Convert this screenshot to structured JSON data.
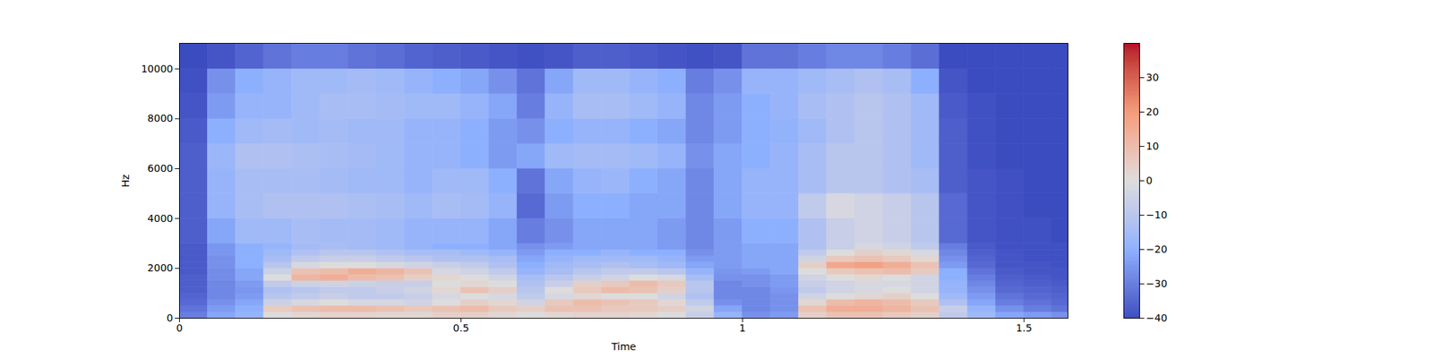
{
  "chart_data": {
    "type": "heatmap",
    "x_label": "Time",
    "y_label": "Hz",
    "xlim": [
      0,
      1.578
    ],
    "ylim": [
      0,
      11025
    ],
    "xticks": [
      0,
      0.5,
      1,
      1.5
    ],
    "yticks": [
      0,
      2000,
      4000,
      6000,
      8000,
      10000
    ],
    "x_edges": [
      0,
      0.05,
      0.1,
      0.15,
      0.2,
      0.25,
      0.3,
      0.35,
      0.4,
      0.45,
      0.5,
      0.55,
      0.6,
      0.65,
      0.7,
      0.75,
      0.8,
      0.85,
      0.9,
      0.95,
      1.0,
      1.05,
      1.1,
      1.15,
      1.2,
      1.25,
      1.3,
      1.35,
      1.4,
      1.45,
      1.5,
      1.55,
      1.578
    ],
    "y_edges": [
      0,
      250,
      500,
      750,
      1000,
      1250,
      1500,
      1750,
      2000,
      2250,
      2500,
      2750,
      3000,
      4000,
      5000,
      6000,
      7000,
      8000,
      9000,
      10000,
      11025
    ],
    "cells": [
      [
        -30,
        -32,
        -34,
        -35,
        -36,
        -36,
        -36,
        -37,
        -37,
        -37,
        -37,
        -37,
        -36,
        -36,
        -36,
        -36,
        -37,
        -38,
        -39,
        -40
      ],
      [
        -22,
        -24,
        -26,
        -28,
        -28,
        -28,
        -27,
        -27,
        -26,
        -26,
        -25,
        -25,
        -22,
        -18,
        -18,
        -17,
        -20,
        -24,
        -26,
        -38
      ],
      [
        -18,
        -20,
        -22,
        -24,
        -25,
        -24,
        -22,
        -22,
        -20,
        -20,
        -20,
        -20,
        -16,
        -14,
        -14,
        -12,
        -16,
        -18,
        -20,
        -35
      ],
      [
        0,
        5,
        -5,
        -10,
        -12,
        -8,
        0,
        -5,
        -10,
        -14,
        -16,
        -18,
        -16,
        -12,
        -14,
        -12,
        -15,
        -18,
        -18,
        -32
      ],
      [
        2,
        8,
        -2,
        -8,
        -10,
        -5,
        12,
        8,
        -2,
        -8,
        -12,
        -15,
        -14,
        -12,
        -14,
        -13,
        -16,
        -16,
        -16,
        -30
      ],
      [
        3,
        10,
        0,
        -6,
        -8,
        -4,
        14,
        10,
        0,
        -6,
        -10,
        -14,
        -15,
        -12,
        -15,
        -14,
        -15,
        -14,
        -16,
        -30
      ],
      [
        3,
        10,
        -2,
        -8,
        -8,
        -5,
        10,
        14,
        0,
        -6,
        -10,
        -15,
        -15,
        -13,
        -16,
        -15,
        -16,
        -14,
        -15,
        -32
      ],
      [
        2,
        8,
        -2,
        -8,
        -6,
        -6,
        8,
        12,
        -2,
        -8,
        -12,
        -16,
        -16,
        -14,
        -16,
        -16,
        -16,
        -15,
        -16,
        -33
      ],
      [
        2,
        6,
        -4,
        -6,
        -4,
        -6,
        4,
        8,
        -4,
        -10,
        -14,
        -18,
        -18,
        -16,
        -18,
        -18,
        -18,
        -16,
        -18,
        -35
      ],
      [
        4,
        8,
        0,
        -2,
        2,
        0,
        2,
        -2,
        -6,
        -12,
        -14,
        -20,
        -18,
        -14,
        -16,
        -18,
        -18,
        -16,
        -20,
        -36
      ],
      [
        4,
        10,
        4,
        0,
        8,
        2,
        0,
        -4,
        -8,
        -12,
        -16,
        -20,
        -18,
        -15,
        -16,
        -20,
        -20,
        -18,
        -22,
        -37
      ],
      [
        2,
        6,
        2,
        -2,
        4,
        0,
        -4,
        -8,
        -12,
        -14,
        -18,
        -22,
        -22,
        -18,
        -20,
        -24,
        -24,
        -22,
        -26,
        -38
      ],
      [
        0,
        4,
        -4,
        -8,
        -10,
        -12,
        -14,
        -18,
        -20,
        -22,
        -24,
        -26,
        -30,
        -34,
        -32,
        -22,
        -26,
        -30,
        -32,
        -39
      ],
      [
        2,
        8,
        6,
        -2,
        0,
        -6,
        -10,
        -14,
        -16,
        -18,
        -20,
        -24,
        -26,
        -24,
        -22,
        -16,
        -20,
        -18,
        -22,
        -38
      ],
      [
        3,
        8,
        10,
        2,
        6,
        4,
        -6,
        -10,
        -14,
        -16,
        -20,
        -22,
        -22,
        -20,
        -18,
        -15,
        -18,
        -14,
        -16,
        -36
      ],
      [
        3,
        6,
        8,
        0,
        10,
        6,
        -4,
        -8,
        -12,
        -16,
        -18,
        -22,
        -22,
        -20,
        -17,
        -15,
        -18,
        -14,
        -16,
        -36
      ],
      [
        2,
        6,
        6,
        0,
        8,
        10,
        0,
        -8,
        -14,
        -16,
        -20,
        -22,
        -22,
        -22,
        -20,
        -16,
        -20,
        -16,
        -18,
        -37
      ],
      [
        0,
        4,
        2,
        -4,
        4,
        6,
        -2,
        -10,
        -16,
        -18,
        -20,
        -24,
        -24,
        -22,
        -22,
        -18,
        -22,
        -18,
        -20,
        -38
      ],
      [
        -6,
        -4,
        -8,
        -12,
        -10,
        -10,
        -14,
        -18,
        -22,
        -24,
        -26,
        -28,
        -28,
        -28,
        -28,
        -26,
        -28,
        -28,
        -30,
        -39
      ],
      [
        -18,
        -22,
        -26,
        -28,
        -28,
        -28,
        -26,
        -25,
        -24,
        -24,
        -24,
        -24,
        -24,
        -22,
        -22,
        -22,
        -24,
        -24,
        -26,
        -38
      ],
      [
        -26,
        -28,
        -28,
        -28,
        -28,
        -26,
        -26,
        -24,
        -22,
        -22,
        -22,
        -22,
        -20,
        -18,
        -18,
        -20,
        -20,
        -20,
        -18,
        -32
      ],
      [
        -24,
        -26,
        -26,
        -26,
        -25,
        -24,
        -24,
        -22,
        -22,
        -22,
        -22,
        -22,
        -20,
        -18,
        -18,
        -18,
        -19,
        -18,
        -18,
        -32
      ],
      [
        4,
        8,
        2,
        -4,
        -8,
        -6,
        -4,
        0,
        4,
        -4,
        -8,
        -12,
        -12,
        -8,
        -14,
        -14,
        -16,
        -14,
        -16,
        -30
      ],
      [
        8,
        14,
        10,
        0,
        -4,
        -4,
        0,
        6,
        16,
        6,
        0,
        -6,
        -6,
        -2,
        -10,
        -10,
        -12,
        -12,
        -14,
        -28
      ],
      [
        8,
        14,
        12,
        2,
        -2,
        -2,
        2,
        8,
        18,
        8,
        4,
        -2,
        -4,
        -4,
        -10,
        -10,
        -10,
        -10,
        -12,
        -28
      ],
      [
        6,
        12,
        10,
        4,
        0,
        -2,
        0,
        10,
        14,
        6,
        2,
        -4,
        -6,
        -6,
        -12,
        -12,
        -12,
        -12,
        -14,
        -30
      ],
      [
        4,
        8,
        6,
        0,
        -4,
        -4,
        -4,
        6,
        8,
        2,
        -2,
        -8,
        -10,
        -10,
        -14,
        -16,
        -16,
        -16,
        -20,
        -33
      ],
      [
        -8,
        -6,
        -12,
        -16,
        -18,
        -18,
        -20,
        -20,
        -24,
        -26,
        -28,
        -30,
        -34,
        -34,
        -36,
        -36,
        -36,
        -37,
        -38,
        -40
      ],
      [
        -16,
        -18,
        -22,
        -24,
        -26,
        -28,
        -30,
        -32,
        -34,
        -35,
        -36,
        -37,
        -38,
        -38,
        -38,
        -39,
        -39,
        -39,
        -40,
        -40
      ],
      [
        -22,
        -26,
        -30,
        -32,
        -34,
        -35,
        -36,
        -37,
        -38,
        -38,
        -38,
        -39,
        -39,
        -39,
        -39,
        -40,
        -40,
        -40,
        -40,
        -40
      ],
      [
        -24,
        -30,
        -32,
        -34,
        -35,
        -36,
        -37,
        -38,
        -38,
        -39,
        -39,
        -39,
        -39,
        -40,
        -40,
        -40,
        -40,
        -40,
        -40,
        -40
      ],
      [
        -26,
        -32,
        -34,
        -35,
        -36,
        -37,
        -38,
        -38,
        -39,
        -39,
        -39,
        -39,
        -40,
        -40,
        -40,
        -40,
        -40,
        -40,
        -40,
        -40
      ]
    ],
    "colorbar": {
      "range": [
        -40,
        40
      ],
      "ticks": [
        {
          "value": -40,
          "label": "−40"
        },
        {
          "value": -30,
          "label": "−30"
        },
        {
          "value": -20,
          "label": "−20"
        },
        {
          "value": -10,
          "label": "−10"
        },
        0,
        10,
        20,
        30
      ]
    }
  }
}
